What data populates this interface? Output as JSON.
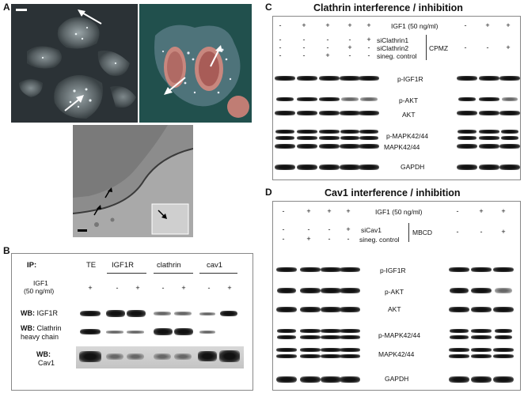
{
  "panel_a": {
    "letter": "A",
    "micrograph_left_desc": "",
    "micrograph_right_desc": "",
    "em_desc": ""
  },
  "panel_b": {
    "letter": "B",
    "ip_label": "IP:",
    "groups": [
      "TE",
      "IGF1R",
      "clathrin",
      "cav1"
    ],
    "igf1_label": "IGF1",
    "igf1_dose": "(50 ng/ml)",
    "igf1_signs": [
      "+",
      "-",
      "+",
      "-",
      "+",
      "-",
      "+"
    ],
    "wb_prefix": "WB:",
    "rows": [
      "IGF1R",
      "Clathrin",
      "heavy chain",
      "Cav1"
    ]
  },
  "panel_c": {
    "letter": "C",
    "title": "Clathrin interference / inhibition",
    "igf1_label": "IGF1 (50 ng/ml)",
    "igf1_left": [
      "-",
      "+",
      "+",
      "+",
      "+"
    ],
    "igf1_right": [
      "-",
      "+",
      "+"
    ],
    "siclathrin1": {
      "label": "siClathrin1",
      "signs": [
        "-",
        "-",
        "-",
        "-",
        "+"
      ]
    },
    "siclathrin2": {
      "label": "siClathrin2",
      "signs": [
        "-",
        "-",
        "-",
        "+",
        "-"
      ]
    },
    "sineg": {
      "label": "sineg. control",
      "signs": [
        "-",
        "-",
        "+",
        "-",
        "-"
      ]
    },
    "cpmz": {
      "label": "CPMZ",
      "signs": [
        "-",
        "-",
        "+"
      ]
    },
    "blots": [
      "p-IGF1R",
      "p-AKT",
      "AKT",
      "p-MAPK42/44",
      "MAPK42/44",
      "GAPDH"
    ]
  },
  "panel_d": {
    "letter": "D",
    "title": "Cav1 interference / inhibition",
    "igf1_label": "IGF1 (50 ng/ml)",
    "igf1_left": [
      "-",
      "+",
      "+",
      "+"
    ],
    "igf1_right": [
      "-",
      "+",
      "+"
    ],
    "sicav1": {
      "label": "siCav1",
      "signs": [
        "-",
        "-",
        "-",
        "+"
      ]
    },
    "sineg": {
      "label": "sineg. control",
      "signs": [
        "-",
        "+",
        "-",
        "-"
      ]
    },
    "mbcd": {
      "label": "MBCD",
      "signs": [
        "-",
        "-",
        "+"
      ]
    },
    "blots": [
      "p-IGF1R",
      "p-AKT",
      "AKT",
      "p-MAPK42/44",
      "MAPK42/44",
      "GAPDH"
    ]
  }
}
